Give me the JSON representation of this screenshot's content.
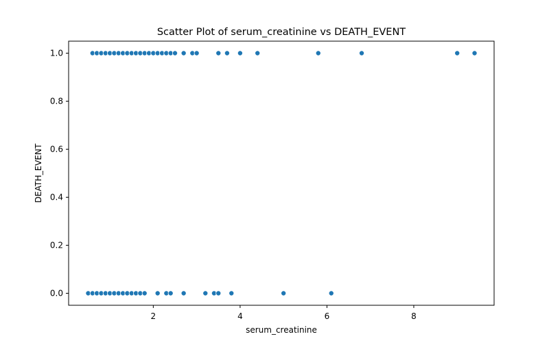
{
  "chart_data": {
    "type": "scatter",
    "title": "Scatter Plot of serum_creatinine vs DEATH_EVENT",
    "xlabel": "serum_creatinine",
    "ylabel": "DEATH_EVENT",
    "xlim": [
      0.05,
      9.85
    ],
    "ylim": [
      -0.05,
      1.05
    ],
    "xticks": [
      2,
      4,
      6,
      8
    ],
    "yticks": [
      0.0,
      0.2,
      0.4,
      0.6,
      0.8,
      1.0
    ],
    "grid": false,
    "marker_color": "#1f77b4",
    "points_death_1": [
      0.6,
      0.7,
      0.8,
      0.9,
      1.0,
      1.1,
      1.2,
      1.3,
      1.4,
      1.5,
      1.6,
      1.7,
      1.8,
      1.9,
      2.0,
      2.1,
      2.2,
      2.3,
      2.4,
      2.5,
      2.7,
      2.9,
      3.0,
      3.5,
      3.7,
      4.0,
      4.4,
      5.8,
      6.8,
      9.0,
      9.4
    ],
    "points_death_0": [
      0.5,
      0.6,
      0.7,
      0.8,
      0.9,
      1.0,
      1.1,
      1.2,
      1.3,
      1.4,
      1.5,
      1.6,
      1.7,
      1.8,
      2.1,
      2.3,
      2.4,
      2.7,
      3.2,
      3.4,
      3.5,
      3.8,
      5.0,
      6.1
    ]
  }
}
